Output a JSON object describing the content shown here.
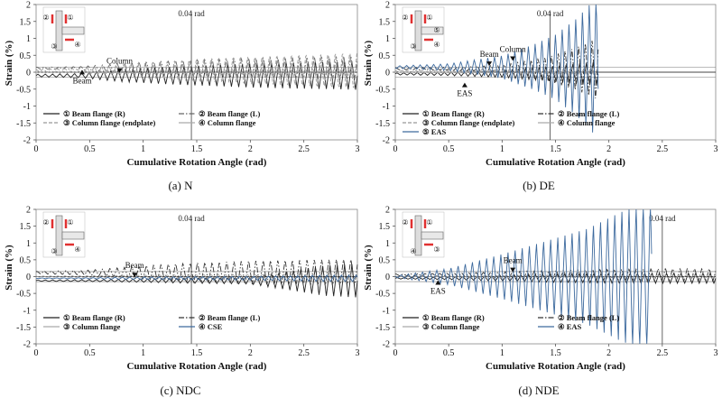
{
  "chart_data": [
    {
      "type": "line",
      "caption": "(a) N",
      "xlabel": "Cumulative Rotation Angle (rad)",
      "ylabel": "Strain (%)",
      "xlim": [
        0,
        3
      ],
      "ylim": [
        -2,
        2
      ],
      "xticks": [
        "0",
        "0.5",
        "1",
        "1.5",
        "2",
        "2.5",
        "3"
      ],
      "yticks": [
        "2",
        "1.5",
        "1",
        "0.5",
        "0",
        "-0.5",
        "-1",
        "-1.5",
        "-2"
      ],
      "vline_x": 1.45,
      "vline_label": "0.04 rad",
      "annotations": [
        {
          "text": "Beam",
          "x": 0.43,
          "y": -0.17
        },
        {
          "text": "Column",
          "x": 0.78,
          "y": 0.25
        }
      ],
      "inset_labels": [
        "②",
        "①",
        "③",
        "④"
      ],
      "legend": [
        "① Beam flange (R)",
        "② Beam flange (L)",
        "③ Column flange (endplate)",
        "④ Column flange"
      ],
      "series": [
        {
          "name": "① Beam flange (R)",
          "style": "solid",
          "color": "#222222",
          "x": [
            0,
            0.4,
            0.8,
            1.2,
            1.6,
            2.0,
            2.4,
            2.8,
            3.0
          ],
          "amplitude": [
            0.04,
            0.06,
            0.18,
            0.25,
            0.3,
            0.35,
            0.38,
            0.4,
            0.42
          ],
          "offset": -0.1
        },
        {
          "name": "② Beam flange (L)",
          "style": "dashdot",
          "color": "#666666",
          "x": [
            0,
            0.4,
            0.8,
            1.2,
            1.6,
            2.0,
            2.4,
            2.8,
            3.0
          ],
          "amplitude": [
            0.03,
            0.05,
            0.15,
            0.22,
            0.28,
            0.32,
            0.35,
            0.38,
            0.4
          ],
          "offset": 0.12
        },
        {
          "name": "③ Column flange (endplate)",
          "style": "dashed",
          "color": "#999999",
          "x": [
            0,
            0.4,
            0.8,
            1.2,
            1.6,
            2.0,
            2.4,
            2.8,
            3.0
          ],
          "amplitude": [
            0.04,
            0.08,
            0.2,
            0.3,
            0.38,
            0.45,
            0.5,
            0.55,
            0.6
          ],
          "offset": 0.05
        },
        {
          "name": "④ Column flange",
          "style": "solid",
          "color": "#aaaaaa",
          "x": [
            0,
            0.4,
            0.8,
            1.2,
            1.6,
            2.0,
            2.4,
            2.8,
            3.0
          ],
          "amplitude": [
            0.02,
            0.03,
            0.05,
            0.06,
            0.07,
            0.08,
            0.08,
            0.09,
            0.1
          ],
          "offset": 0.0
        }
      ]
    },
    {
      "type": "line",
      "caption": "(b) DE",
      "xlabel": "Cumulative Rotation Angle (rad)",
      "ylabel": "Strain (%)",
      "xlim": [
        0,
        3
      ],
      "ylim": [
        -2,
        2
      ],
      "xticks": [
        "0",
        "0.5",
        "1",
        "1.5",
        "2",
        "2.5",
        "3"
      ],
      "yticks": [
        "2",
        "1.5",
        "1",
        "0.5",
        "0",
        "-0.5",
        "-1",
        "-1.5",
        "-2"
      ],
      "vline_x": 1.45,
      "vline_label": "0.04 rad",
      "annotations": [
        {
          "text": "EAS",
          "x": 0.65,
          "y": -0.55
        },
        {
          "text": "Beam",
          "x": 0.88,
          "y": 0.45
        },
        {
          "text": "Column",
          "x": 1.1,
          "y": 0.6
        }
      ],
      "inset_labels": [
        "②",
        "①",
        "③",
        "④",
        "⑤"
      ],
      "legend": [
        "① Beam flange (R)",
        "② Beam flange (L)",
        "③ Column flange (endplate)",
        "④ Column flange",
        "⑤ EAS"
      ],
      "series": [
        {
          "name": "① Beam flange (R)",
          "style": "solid",
          "color": "#222222",
          "x": [
            0,
            0.5,
            1.0,
            1.4,
            1.7,
            1.9
          ],
          "amplitude": [
            0.03,
            0.05,
            0.1,
            0.2,
            0.3,
            0.35
          ],
          "offset": -0.05
        },
        {
          "name": "② Beam flange (L)",
          "style": "dashdot",
          "color": "#333333",
          "x": [
            0,
            0.5,
            1.0,
            1.4,
            1.7,
            1.9
          ],
          "amplitude": [
            0.03,
            0.05,
            0.12,
            0.35,
            0.7,
            1.0
          ],
          "offset": 0.1
        },
        {
          "name": "③ Column flange (endplate)",
          "style": "dashed",
          "color": "#999999",
          "x": [
            0,
            0.5,
            1.0,
            1.4,
            1.7,
            1.9
          ],
          "amplitude": [
            0.02,
            0.04,
            0.08,
            0.12,
            0.15,
            0.18
          ],
          "offset": 0.03
        },
        {
          "name": "④ Column flange",
          "style": "solid",
          "color": "#aaaaaa",
          "x": [
            0,
            0.5,
            1.0,
            1.4,
            1.7,
            1.9
          ],
          "amplitude": [
            0.01,
            0.02,
            0.04,
            0.05,
            0.06,
            0.07
          ],
          "offset": 0.0
        },
        {
          "name": "⑤ EAS",
          "style": "solid",
          "color": "#3d6a9e",
          "x": [
            0,
            0.5,
            1.0,
            1.3,
            1.5,
            1.7,
            1.9
          ],
          "amplitude": [
            0.04,
            0.1,
            0.35,
            0.7,
            1.0,
            1.5,
            2.2
          ],
          "offset": 0.15
        }
      ]
    },
    {
      "type": "line",
      "caption": "(c) NDC",
      "xlabel": "Cumulative Rotation Angle (rad)",
      "ylabel": "Strain (%)",
      "xlim": [
        0,
        3
      ],
      "ylim": [
        -2,
        2
      ],
      "xticks": [
        "0",
        "0.5",
        "1",
        "1.5",
        "2",
        "2.5",
        "3"
      ],
      "yticks": [
        "2",
        "1.5",
        "1",
        "0.5",
        "0",
        "-0.5",
        "-1",
        "-1.5",
        "-2"
      ],
      "vline_x": 1.45,
      "vline_label": "0.04 rad",
      "annotations": [
        {
          "text": "Beam",
          "x": 0.92,
          "y": 0.25
        }
      ],
      "inset_labels": [
        "②",
        "①",
        "③",
        "④"
      ],
      "legend": [
        "① Beam flange (R)",
        "② Beam flange (L)",
        "③ Column flange",
        "④ CSE"
      ],
      "series": [
        {
          "name": "① Beam flange (R)",
          "style": "solid",
          "color": "#222222",
          "x": [
            0,
            0.5,
            1.0,
            1.5,
            2.0,
            2.4,
            2.7,
            3.0
          ],
          "amplitude": [
            0.02,
            0.03,
            0.05,
            0.08,
            0.1,
            0.3,
            0.45,
            0.5
          ],
          "offset": -0.12
        },
        {
          "name": "② Beam flange (L)",
          "style": "dashdot",
          "color": "#333333",
          "x": [
            0,
            0.5,
            1.0,
            1.5,
            2.0,
            2.4,
            2.7,
            3.0
          ],
          "amplitude": [
            0.04,
            0.08,
            0.22,
            0.32,
            0.38,
            0.4,
            0.42,
            0.42
          ],
          "offset": 0.12
        },
        {
          "name": "③ Column flange",
          "style": "solid",
          "color": "#aaaaaa",
          "x": [
            0,
            0.5,
            1.0,
            1.5,
            2.0,
            2.4,
            2.7,
            3.0
          ],
          "amplitude": [
            0.02,
            0.03,
            0.05,
            0.06,
            0.07,
            0.08,
            0.08,
            0.08
          ],
          "offset": 0.0
        },
        {
          "name": "④ CSE",
          "style": "solid",
          "color": "#3d6a9e",
          "x": [
            0,
            0.5,
            1.0,
            1.5,
            2.0,
            2.4,
            2.7,
            3.0
          ],
          "amplitude": [
            0.01,
            0.02,
            0.04,
            0.05,
            0.06,
            0.08,
            0.1,
            0.1
          ],
          "offset": -0.05
        }
      ]
    },
    {
      "type": "line",
      "caption": "(d) NDE",
      "xlabel": "Cumulative Rotation Angle (rad)",
      "ylabel": "Strain (%)",
      "xlim": [
        0,
        3
      ],
      "ylim": [
        -2,
        2
      ],
      "xticks": [
        "0",
        "0.5",
        "1",
        "1.5",
        "2",
        "2.5",
        "3"
      ],
      "yticks": [
        "2",
        "1.5",
        "1",
        "0.5",
        "0",
        "-0.5",
        "-1",
        "-1.5",
        "-2"
      ],
      "vline_x": 2.5,
      "vline_label": "0.04 rad",
      "annotations": [
        {
          "text": "EAS",
          "x": 0.4,
          "y": -0.35
        },
        {
          "text": "Beam",
          "x": 1.1,
          "y": 0.4
        }
      ],
      "inset_labels": [
        "②",
        "①",
        "④",
        "③"
      ],
      "legend": [
        "① Beam flange (R)",
        "② Beam flange (L)",
        "③ Column flange",
        "④ EAS"
      ],
      "series": [
        {
          "name": "① Beam flange (R)",
          "style": "solid",
          "color": "#222222",
          "x": [
            0,
            0.5,
            1.0,
            1.5,
            2.0,
            2.5,
            3.0
          ],
          "amplitude": [
            0.02,
            0.04,
            0.08,
            0.12,
            0.14,
            0.15,
            0.15
          ],
          "offset": -0.05
        },
        {
          "name": "② Beam flange (L)",
          "style": "dashdot",
          "color": "#333333",
          "x": [
            0,
            0.5,
            1.0,
            1.5,
            2.0,
            2.5,
            3.0
          ],
          "amplitude": [
            0.03,
            0.05,
            0.1,
            0.15,
            0.18,
            0.2,
            0.2
          ],
          "offset": 0.05
        },
        {
          "name": "③ Column flange",
          "style": "solid",
          "color": "#aaaaaa",
          "x": [
            0,
            0.5,
            1.0,
            1.5,
            2.0,
            2.5,
            3.0
          ],
          "amplitude": [
            0.01,
            0.02,
            0.03,
            0.04,
            0.05,
            0.05,
            0.05
          ],
          "offset": 0.0
        },
        {
          "name": "④ EAS",
          "style": "solid",
          "color": "#3d6a9e",
          "x": [
            0,
            0.5,
            1.0,
            1.5,
            1.8,
            2.1,
            2.4
          ],
          "amplitude": [
            0.03,
            0.25,
            0.7,
            1.2,
            1.5,
            2.0,
            2.4
          ],
          "offset": 0.0
        }
      ]
    }
  ]
}
